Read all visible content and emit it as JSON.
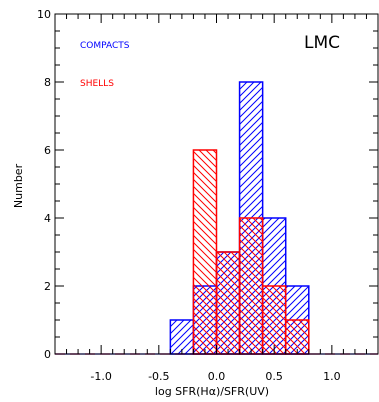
{
  "chart_data": {
    "type": "bar",
    "panel_label": "LMC",
    "xlabel": "log SFR(Hα)/SFR(UV)",
    "ylabel": "Number",
    "xlim": [
      -1.4,
      1.4
    ],
    "ylim": [
      0,
      10
    ],
    "x_ticks": [
      "-1.0",
      "-0.5",
      "0.0",
      "0.5",
      "1.0"
    ],
    "y_ticks": [
      "0",
      "2",
      "4",
      "6",
      "8",
      "10"
    ],
    "bin_edges": [
      -0.4,
      -0.2,
      0.0,
      0.2,
      0.4,
      0.6,
      0.8
    ],
    "series": [
      {
        "name": "COMPACTS",
        "color": "#0000ff",
        "hatch": "forward-diagonal",
        "values": [
          1,
          2,
          3,
          8,
          4,
          2
        ]
      },
      {
        "name": "SHELLS",
        "color": "#ff0000",
        "hatch": "backward-diagonal",
        "values": [
          0,
          6,
          3,
          4,
          2,
          1
        ]
      }
    ],
    "legend_position": "top-left"
  }
}
